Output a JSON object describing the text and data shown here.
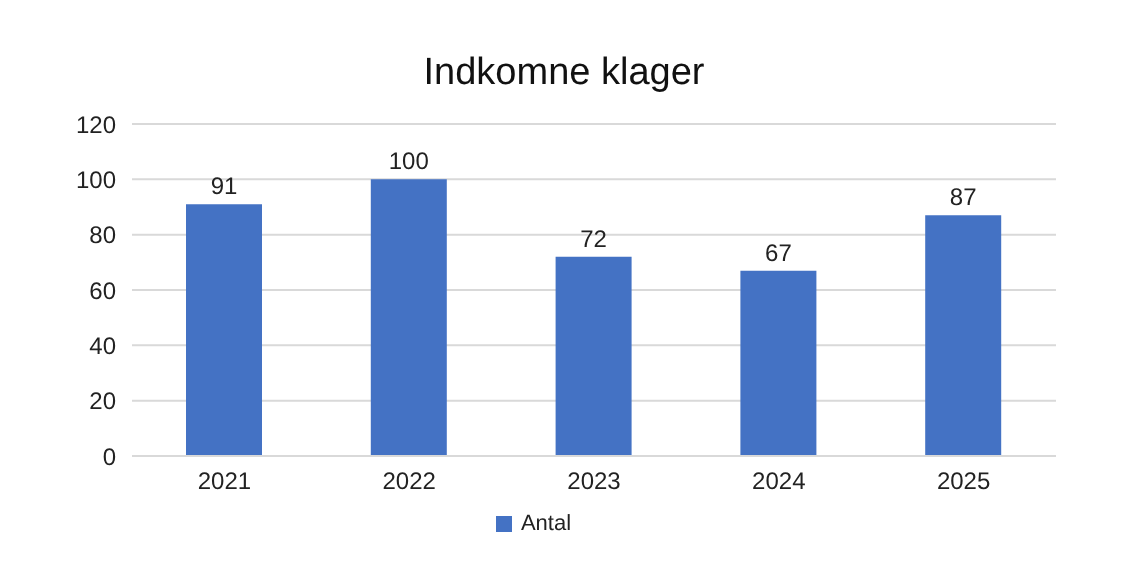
{
  "chart_data": {
    "type": "bar",
    "title": "Indkomne klager",
    "categories": [
      "2021",
      "2022",
      "2023",
      "2024",
      "2025"
    ],
    "series": [
      {
        "name": "Antal",
        "color": "#4472c4",
        "values": [
          91,
          100,
          72,
          67,
          87
        ]
      }
    ],
    "ylim": [
      0,
      120
    ],
    "yticks": [
      0,
      20,
      40,
      60,
      80,
      100,
      120
    ],
    "grid": "y",
    "legend": "bottom",
    "data_labels": true
  }
}
